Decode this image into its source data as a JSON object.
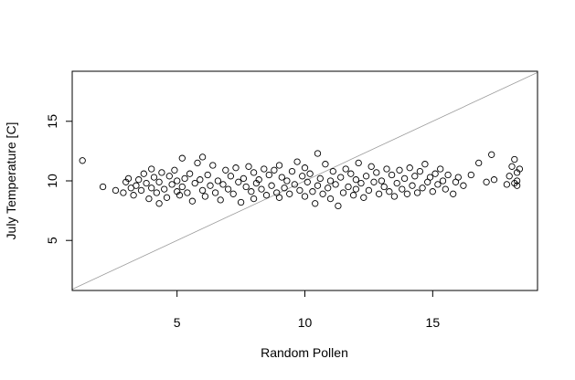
{
  "chart_data": {
    "type": "scatter",
    "title": "",
    "xlabel": "Random Pollen",
    "ylabel": "July Temperature [C]",
    "xlim": [
      0.9,
      19.1
    ],
    "ylim": [
      0.8,
      19.2
    ],
    "xticks": [
      "5",
      "10",
      "15"
    ],
    "yticks": [
      "5",
      "10",
      "15"
    ],
    "xtick_values": [
      5,
      10,
      15
    ],
    "ytick_values": [
      5,
      10,
      15
    ],
    "grid": false,
    "legend": "none",
    "marker": "open-circle",
    "point_color": "#000000",
    "reference_line": {
      "type": "y=x",
      "color": "#9a9a9a"
    },
    "series": [
      {
        "points": [
          [
            1.3,
            11.7
          ],
          [
            2.1,
            9.5
          ],
          [
            2.6,
            9.2
          ],
          [
            2.9,
            9.0
          ],
          [
            3.0,
            9.9
          ],
          [
            3.1,
            10.2
          ],
          [
            3.2,
            9.4
          ],
          [
            3.3,
            8.8
          ],
          [
            3.4,
            9.6
          ],
          [
            3.5,
            10.1
          ],
          [
            3.6,
            9.2
          ],
          [
            3.7,
            10.6
          ],
          [
            3.8,
            9.8
          ],
          [
            3.9,
            8.5
          ],
          [
            4.0,
            11.0
          ],
          [
            4.0,
            9.4
          ],
          [
            4.1,
            10.3
          ],
          [
            4.2,
            9.0
          ],
          [
            4.3,
            8.1
          ],
          [
            4.3,
            9.9
          ],
          [
            4.4,
            10.7
          ],
          [
            4.5,
            9.3
          ],
          [
            4.6,
            8.6
          ],
          [
            4.7,
            10.4
          ],
          [
            4.8,
            9.7
          ],
          [
            4.9,
            10.9
          ],
          [
            5.0,
            9.1
          ],
          [
            5.0,
            10.0
          ],
          [
            5.1,
            8.8
          ],
          [
            5.2,
            11.9
          ],
          [
            5.2,
            9.5
          ],
          [
            5.3,
            10.2
          ],
          [
            5.4,
            9.0
          ],
          [
            5.5,
            10.6
          ],
          [
            5.6,
            8.3
          ],
          [
            5.7,
            9.8
          ],
          [
            5.8,
            11.5
          ],
          [
            5.9,
            10.1
          ],
          [
            6.0,
            12.0
          ],
          [
            6.0,
            9.2
          ],
          [
            6.1,
            8.7
          ],
          [
            6.2,
            10.5
          ],
          [
            6.3,
            9.6
          ],
          [
            6.4,
            11.3
          ],
          [
            6.5,
            9.0
          ],
          [
            6.6,
            10.0
          ],
          [
            6.7,
            8.4
          ],
          [
            6.8,
            9.7
          ],
          [
            6.9,
            10.9
          ],
          [
            7.0,
            9.3
          ],
          [
            7.1,
            10.4
          ],
          [
            7.2,
            8.9
          ],
          [
            7.3,
            11.1
          ],
          [
            7.4,
            9.9
          ],
          [
            7.5,
            8.2
          ],
          [
            7.6,
            10.2
          ],
          [
            7.7,
            9.5
          ],
          [
            7.8,
            11.2
          ],
          [
            7.9,
            9.1
          ],
          [
            8.0,
            10.7
          ],
          [
            8.0,
            8.5
          ],
          [
            8.1,
            9.8
          ],
          [
            8.2,
            10.1
          ],
          [
            8.3,
            9.3
          ],
          [
            8.4,
            11.0
          ],
          [
            8.5,
            8.8
          ],
          [
            8.6,
            10.5
          ],
          [
            8.7,
            9.6
          ],
          [
            8.8,
            10.9
          ],
          [
            8.9,
            9.0
          ],
          [
            9.0,
            11.3
          ],
          [
            9.0,
            8.6
          ],
          [
            9.1,
            10.3
          ],
          [
            9.2,
            9.4
          ],
          [
            9.3,
            10.0
          ],
          [
            9.4,
            8.9
          ],
          [
            9.5,
            10.8
          ],
          [
            9.6,
            9.7
          ],
          [
            9.7,
            11.6
          ],
          [
            9.8,
            9.2
          ],
          [
            9.9,
            10.4
          ],
          [
            10.0,
            8.7
          ],
          [
            10.0,
            11.1
          ],
          [
            10.1,
            9.9
          ],
          [
            10.2,
            10.6
          ],
          [
            10.3,
            9.1
          ],
          [
            10.4,
            8.1
          ],
          [
            10.5,
            12.3
          ],
          [
            10.5,
            9.6
          ],
          [
            10.6,
            10.2
          ],
          [
            10.7,
            8.9
          ],
          [
            10.8,
            11.4
          ],
          [
            10.9,
            9.4
          ],
          [
            11.0,
            10.0
          ],
          [
            11.0,
            8.5
          ],
          [
            11.1,
            10.8
          ],
          [
            11.2,
            9.7
          ],
          [
            11.3,
            7.9
          ],
          [
            11.4,
            10.3
          ],
          [
            11.5,
            9.0
          ],
          [
            11.6,
            11.0
          ],
          [
            11.7,
            9.5
          ],
          [
            11.8,
            10.6
          ],
          [
            11.9,
            8.8
          ],
          [
            12.0,
            10.1
          ],
          [
            12.0,
            9.3
          ],
          [
            12.1,
            11.5
          ],
          [
            12.2,
            9.8
          ],
          [
            12.3,
            8.6
          ],
          [
            12.4,
            10.4
          ],
          [
            12.5,
            9.2
          ],
          [
            12.6,
            11.2
          ],
          [
            12.7,
            9.9
          ],
          [
            12.8,
            10.7
          ],
          [
            12.9,
            8.9
          ],
          [
            13.0,
            10.0
          ],
          [
            13.1,
            9.5
          ],
          [
            13.2,
            11.0
          ],
          [
            13.3,
            9.1
          ],
          [
            13.4,
            10.5
          ],
          [
            13.5,
            8.7
          ],
          [
            13.6,
            9.8
          ],
          [
            13.7,
            10.9
          ],
          [
            13.8,
            9.3
          ],
          [
            13.9,
            10.2
          ],
          [
            14.0,
            8.9
          ],
          [
            14.1,
            11.1
          ],
          [
            14.2,
            9.6
          ],
          [
            14.3,
            10.4
          ],
          [
            14.4,
            9.0
          ],
          [
            14.5,
            10.8
          ],
          [
            14.6,
            9.4
          ],
          [
            14.7,
            11.4
          ],
          [
            14.8,
            9.9
          ],
          [
            14.9,
            10.3
          ],
          [
            15.0,
            9.1
          ],
          [
            15.1,
            10.6
          ],
          [
            15.2,
            9.7
          ],
          [
            15.3,
            11.0
          ],
          [
            15.4,
            10.0
          ],
          [
            15.5,
            9.3
          ],
          [
            15.6,
            10.5
          ],
          [
            15.8,
            8.9
          ],
          [
            15.9,
            9.9
          ],
          [
            16.0,
            10.3
          ],
          [
            16.2,
            9.6
          ],
          [
            16.5,
            10.5
          ],
          [
            16.8,
            11.5
          ],
          [
            17.1,
            9.9
          ],
          [
            17.3,
            12.2
          ],
          [
            17.4,
            10.1
          ],
          [
            17.9,
            9.7
          ],
          [
            18.0,
            10.4
          ],
          [
            18.1,
            11.2
          ],
          [
            18.2,
            9.8
          ],
          [
            18.2,
            11.8
          ],
          [
            18.3,
            10.7
          ],
          [
            18.3,
            10.0
          ],
          [
            18.3,
            9.6
          ],
          [
            18.4,
            11.0
          ]
        ]
      }
    ]
  }
}
